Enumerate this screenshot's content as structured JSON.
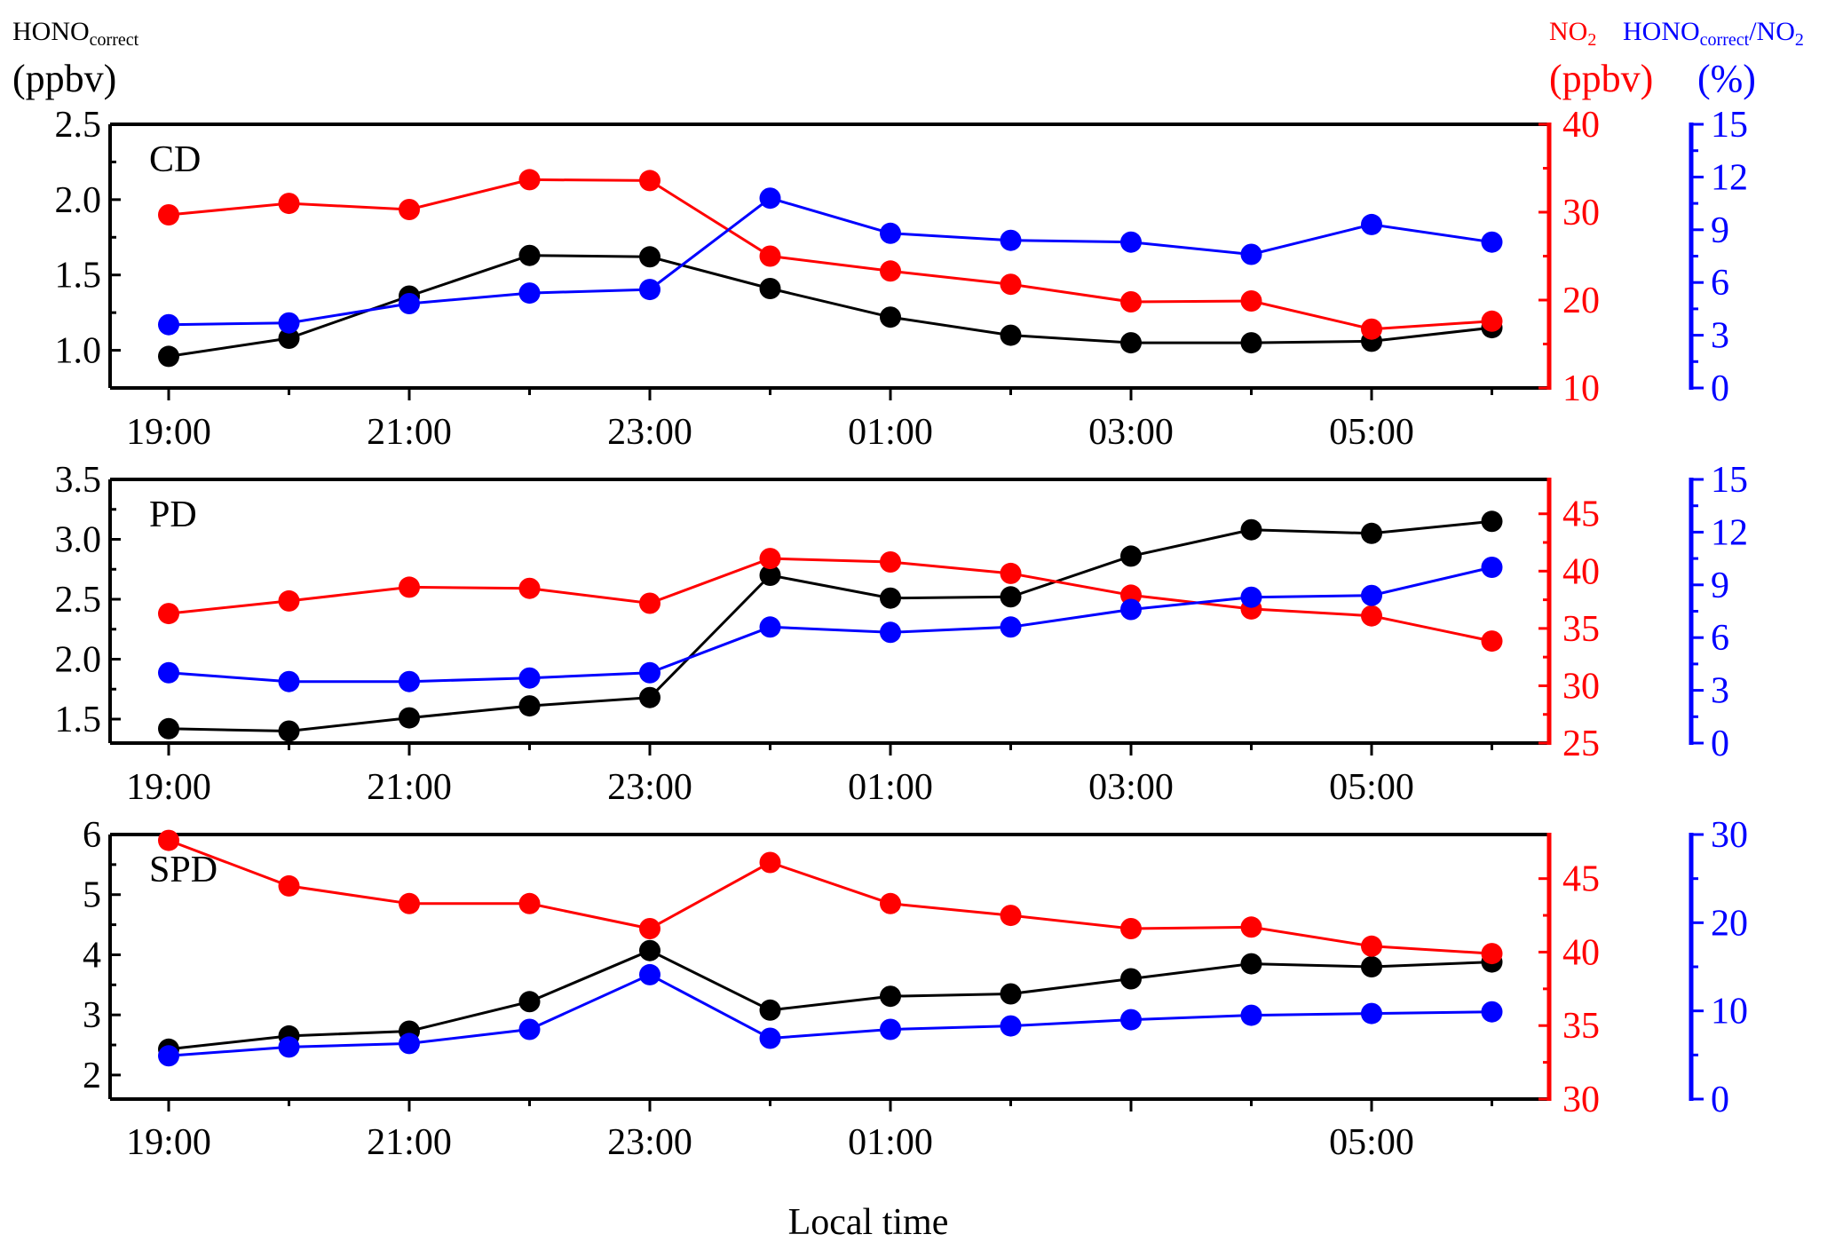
{
  "header": {
    "left_name": "HONO",
    "left_name_sub": "correct",
    "left_unit": "(ppbv)",
    "no2_name": "NO",
    "no2_name_sub": "2",
    "no2_unit": "(ppbv)",
    "ratio_name_a": "HONO",
    "ratio_name_sub": "correct",
    "ratio_name_b": "/NO",
    "ratio_name_sub2": "2",
    "ratio_unit": "(%)"
  },
  "xlabel": "Local time",
  "colors": {
    "hono": "#000000",
    "no2": "#ff0000",
    "ratio": "#0000ff"
  },
  "chart_data": [
    {
      "type": "line",
      "panel_label": "CD",
      "x": [
        "19:00",
        "20:00",
        "21:00",
        "22:00",
        "23:00",
        "00:00",
        "01:00",
        "02:00",
        "03:00",
        "04:00",
        "05:00",
        "06:00"
      ],
      "x_tick_labels": [
        "19:00",
        "21:00",
        "23:00",
        "01:00",
        "03:00",
        "05:00"
      ],
      "series": [
        {
          "axis": "left",
          "color": "#000000",
          "values": [
            0.96,
            1.08,
            1.36,
            1.63,
            1.62,
            1.41,
            1.22,
            1.1,
            1.05,
            1.05,
            1.06,
            1.15
          ]
        },
        {
          "axis": "right",
          "color": "#ff0000",
          "values": [
            29.7,
            31.0,
            30.3,
            33.7,
            33.6,
            25.0,
            23.3,
            21.8,
            19.8,
            19.9,
            16.7,
            17.6
          ]
        },
        {
          "axis": "ratio",
          "color": "#0000ff",
          "values": [
            3.6,
            3.7,
            4.8,
            5.4,
            5.6,
            10.8,
            8.8,
            8.4,
            8.3,
            7.6,
            9.3,
            8.3
          ]
        }
      ],
      "left_axis": {
        "ylim": [
          0.75,
          2.5
        ],
        "ticks": [
          "1.0",
          "1.5",
          "2.0",
          "2.5"
        ]
      },
      "right_axis": {
        "ylim": [
          10,
          40
        ],
        "ticks": [
          "10",
          "20",
          "30",
          "40"
        ]
      },
      "ratio_axis": {
        "ylim": [
          0,
          15
        ],
        "ticks": [
          "0",
          "3",
          "6",
          "9",
          "12",
          "15"
        ]
      }
    },
    {
      "type": "line",
      "panel_label": "PD",
      "x": [
        "19:00",
        "20:00",
        "21:00",
        "22:00",
        "23:00",
        "00:00",
        "01:00",
        "02:00",
        "03:00",
        "04:00",
        "05:00",
        "06:00"
      ],
      "x_tick_labels": [
        "19:00",
        "21:00",
        "23:00",
        "01:00",
        "03:00",
        "05:00"
      ],
      "series": [
        {
          "axis": "left",
          "color": "#000000",
          "values": [
            1.42,
            1.4,
            1.51,
            1.61,
            1.68,
            2.7,
            2.51,
            2.52,
            2.86,
            3.08,
            3.05,
            3.15
          ]
        },
        {
          "axis": "right",
          "color": "#ff0000",
          "values": [
            36.3,
            37.4,
            38.6,
            38.5,
            37.2,
            41.1,
            40.8,
            39.8,
            37.9,
            36.7,
            36.1,
            33.9
          ]
        },
        {
          "axis": "ratio",
          "color": "#0000ff",
          "values": [
            4.0,
            3.5,
            3.5,
            3.7,
            4.0,
            6.6,
            6.3,
            6.6,
            7.6,
            8.3,
            8.4,
            10.0
          ]
        }
      ],
      "left_axis": {
        "ylim": [
          1.3,
          3.5
        ],
        "ticks": [
          "1.5",
          "2.0",
          "2.5",
          "3.0",
          "3.5"
        ]
      },
      "right_axis": {
        "ylim": [
          25,
          48
        ],
        "ticks": [
          "25",
          "30",
          "35",
          "40",
          "45"
        ]
      },
      "ratio_axis": {
        "ylim": [
          0,
          15
        ],
        "ticks": [
          "0",
          "3",
          "6",
          "9",
          "12",
          "15"
        ]
      }
    },
    {
      "type": "line",
      "panel_label": "SPD",
      "x": [
        "19:00",
        "20:00",
        "21:00",
        "22:00",
        "23:00",
        "00:00",
        "01:00",
        "02:00",
        "03:00",
        "04:00",
        "05:00",
        "06:00"
      ],
      "x_tick_labels": [
        "19:00",
        "21:00",
        "23:00",
        "01:00",
        "05:00"
      ],
      "series": [
        {
          "axis": "left",
          "color": "#000000",
          "values": [
            2.43,
            2.65,
            2.73,
            3.22,
            4.07,
            3.08,
            3.31,
            3.35,
            3.6,
            3.85,
            3.8,
            3.88
          ]
        },
        {
          "axis": "right",
          "color": "#ff0000",
          "values": [
            47.6,
            44.5,
            43.3,
            43.3,
            41.6,
            46.1,
            43.3,
            42.5,
            41.6,
            41.7,
            40.4,
            39.9
          ]
        },
        {
          "axis": "ratio",
          "color": "#0000ff",
          "values": [
            4.9,
            5.9,
            6.3,
            7.9,
            14.1,
            6.9,
            7.9,
            8.3,
            9.0,
            9.5,
            9.7,
            9.9
          ]
        }
      ],
      "left_axis": {
        "ylim": [
          1.6,
          6
        ],
        "ticks": [
          "2",
          "3",
          "4",
          "5",
          "6"
        ]
      },
      "right_axis": {
        "ylim": [
          30,
          48
        ],
        "ticks": [
          "30",
          "35",
          "40",
          "45"
        ]
      },
      "ratio_axis": {
        "ylim": [
          0,
          30
        ],
        "ticks": [
          "0",
          "10",
          "20",
          "30"
        ]
      }
    }
  ]
}
